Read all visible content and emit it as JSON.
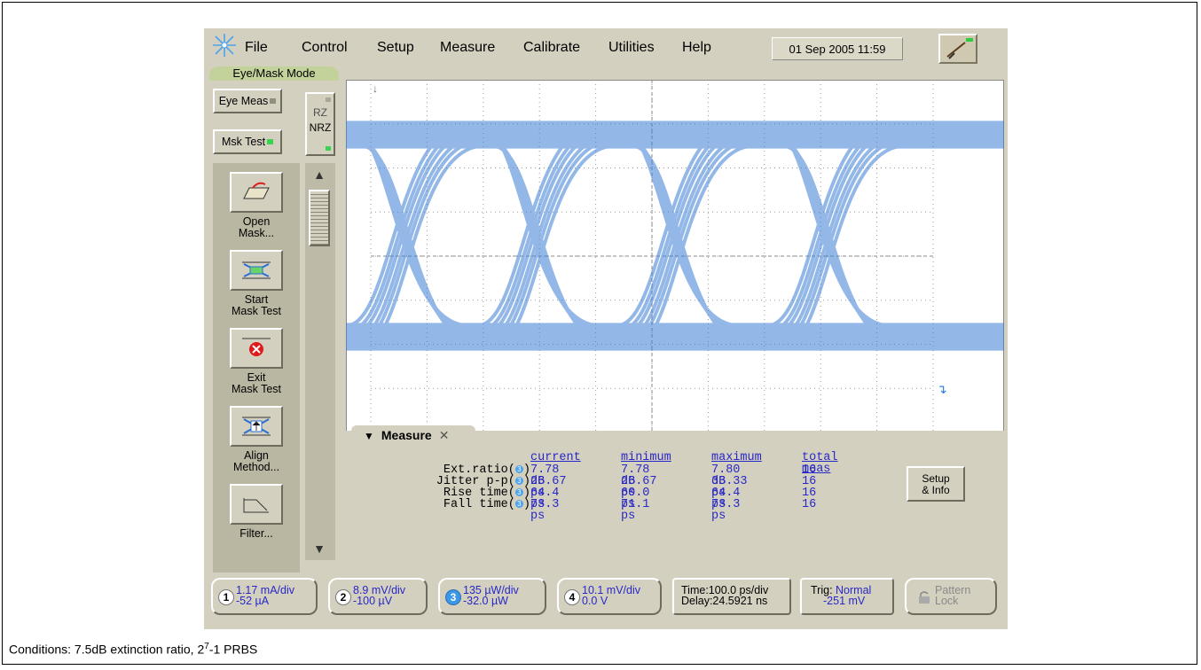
{
  "menu": {
    "items": [
      "File",
      "Control",
      "Setup",
      "Measure",
      "Calibrate",
      "Utilities",
      "Help"
    ],
    "underline": [
      "F",
      "C",
      "S",
      "M",
      "a",
      "U",
      "H"
    ]
  },
  "datetime": "01 Sep 2005  11:59",
  "mode_tab": "Eye/Mask Mode",
  "left": {
    "eye_meas": "Eye Meas",
    "msk_test": "Msk Test",
    "rz": "RZ",
    "nrz": "NRZ",
    "tools": [
      {
        "label1": "Open",
        "label2": "Mask..."
      },
      {
        "label1": "Start",
        "label2": "Mask Test"
      },
      {
        "label1": "Exit",
        "label2": "Mask Test"
      },
      {
        "label1": "Align",
        "label2": "Method..."
      },
      {
        "label1": "Filter...",
        "label2": ""
      }
    ]
  },
  "measure": {
    "title": "Measure",
    "headers": [
      "current",
      "minimum",
      "maximum",
      "total meas"
    ],
    "rows": [
      {
        "label": "Ext.ratio(",
        "current": "7.78 dB",
        "minimum": "7.78 dB",
        "maximum": "7.80 dB",
        "total": "16"
      },
      {
        "label": "Jitter p-p(",
        "current": "26.67 ps",
        "minimum": "26.67 ps",
        "maximum": "33.33 ps",
        "total": "16"
      },
      {
        "label": "Rise time(",
        "current": "64.4 ps",
        "minimum": "60.0 ps",
        "maximum": "64.4 ps",
        "total": "16"
      },
      {
        "label": "Fall time(",
        "current": "73.3 ps",
        "minimum": "71.1 ps",
        "maximum": "73.3 ps",
        "total": "16"
      }
    ],
    "channel_num": "3",
    "setup_info_1": "Setup",
    "setup_info_2": "& Info"
  },
  "channels": [
    {
      "num": "1",
      "line1": "1.17 mA/div",
      "line2": "-52 µA"
    },
    {
      "num": "2",
      "line1": "8.9 mV/div",
      "line2": "-100 µV"
    },
    {
      "num": "3",
      "line1": "135 µW/div",
      "line2": "-32.0 µW"
    },
    {
      "num": "4",
      "line1": "10.1 mV/div",
      "line2": "0.0 V"
    }
  ],
  "timebase": {
    "line1": "Time:100.0 ps/div",
    "line2": "Delay:24.5921 ns"
  },
  "trigger": {
    "label": "Trig: ",
    "mode": "Normal",
    "level": "-251 mV"
  },
  "pattern_lock": {
    "line1": "Pattern",
    "line2": "Lock"
  },
  "caption": {
    "text": "Conditions: 7.5dB extinction ratio, 2",
    "sup": "7",
    "rest": "-1 PRBS"
  },
  "colors": {
    "trace": "#3c7fd6",
    "panel": "#d4d0c0",
    "value_text": "#2727c8"
  }
}
